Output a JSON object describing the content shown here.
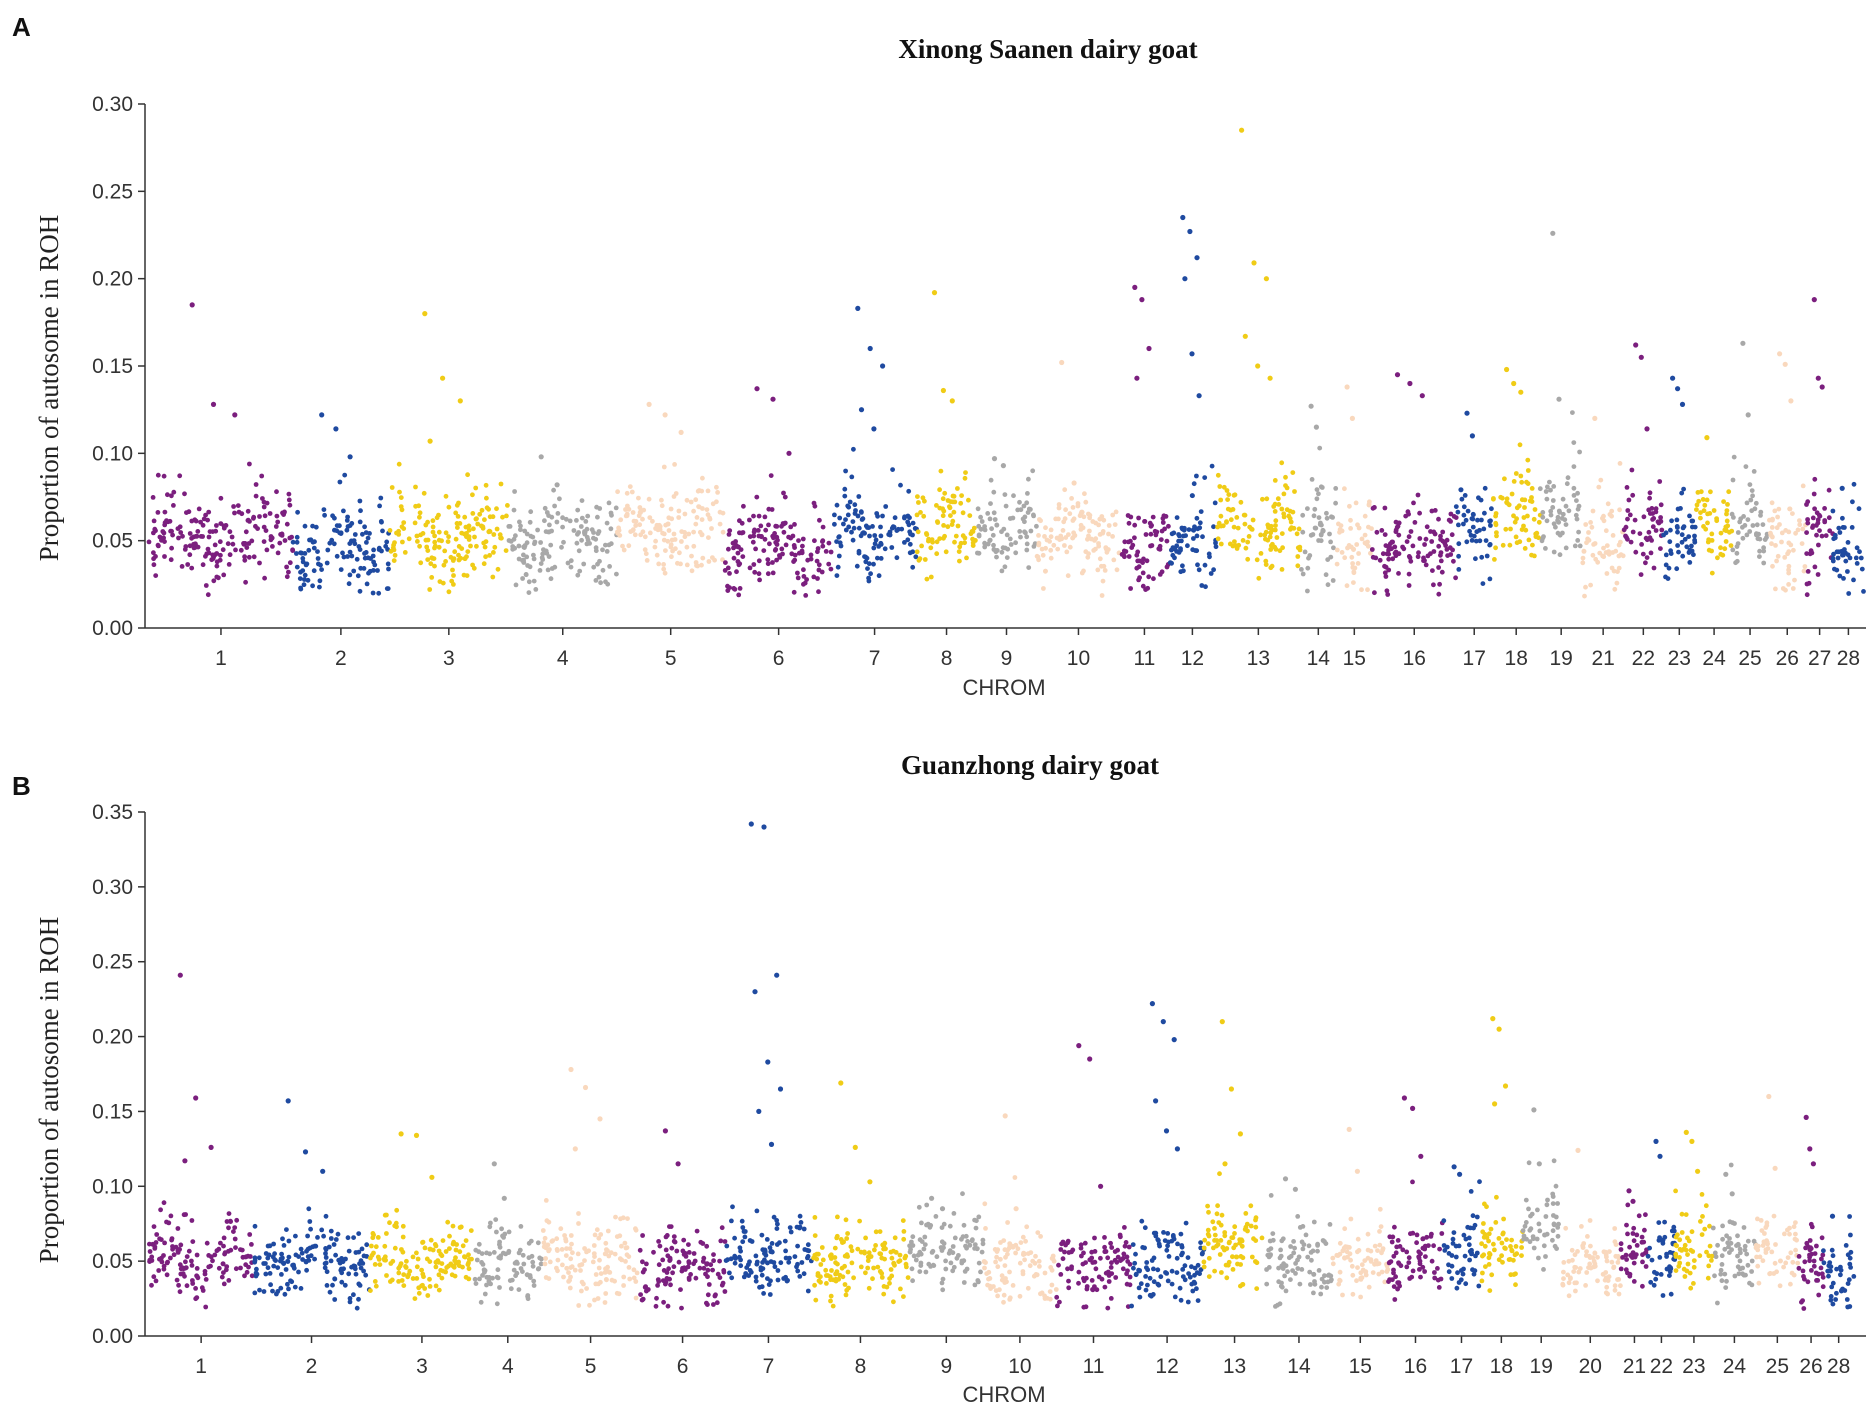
{
  "colors": {
    "purple": "#7b1f7e",
    "blue": "#1f4aa0",
    "yellow": "#f0cc16",
    "gray": "#a8a8a8",
    "peach": "#f9d8bd"
  },
  "chart_data": [
    {
      "panel": "A",
      "type": "scatter",
      "title": "Xinong Saanen dairy goat",
      "xlabel": "CHROM",
      "ylabel": "Proportion of autosome in ROH",
      "ylim": [
        0,
        0.3
      ],
      "yticks": [
        "0.00",
        "0.05",
        "0.10",
        "0.15",
        "0.20",
        "0.25",
        "0.30"
      ],
      "grid": false,
      "color_cycle": [
        "purple",
        "blue",
        "yellow",
        "gray",
        "peach"
      ],
      "chromosomes": [
        {
          "label": "1",
          "start": 0,
          "end": 120,
          "base": 0.052,
          "peaks": [
            0.185,
            0.128,
            0.122
          ]
        },
        {
          "label": "2",
          "start": 120,
          "end": 200,
          "base": 0.048,
          "peaks": [
            0.122,
            0.114,
            0.098
          ]
        },
        {
          "label": "3",
          "start": 200,
          "end": 300,
          "base": 0.052,
          "peaks": [
            0.18,
            0.143,
            0.13,
            0.107
          ]
        },
        {
          "label": "4",
          "start": 300,
          "end": 390,
          "base": 0.05,
          "peaks": [
            0.098,
            0.082
          ]
        },
        {
          "label": "5",
          "start": 390,
          "end": 480,
          "base": 0.055,
          "peaks": [
            0.128,
            0.122,
            0.112
          ]
        },
        {
          "label": "6",
          "start": 480,
          "end": 570,
          "base": 0.045,
          "peaks": [
            0.137,
            0.131,
            0.1
          ]
        },
        {
          "label": "7",
          "start": 570,
          "end": 640,
          "base": 0.055,
          "peaks": [
            0.183,
            0.16,
            0.15,
            0.125,
            0.114
          ]
        },
        {
          "label": "8",
          "start": 640,
          "end": 690,
          "base": 0.06,
          "peaks": [
            0.192,
            0.136,
            0.13
          ]
        },
        {
          "label": "9",
          "start": 690,
          "end": 740,
          "base": 0.055,
          "peaks": [
            0.097,
            0.093
          ]
        },
        {
          "label": "10",
          "start": 740,
          "end": 810,
          "base": 0.053,
          "peaks": [
            0.152,
            0.083
          ]
        },
        {
          "label": "11",
          "start": 810,
          "end": 850,
          "base": 0.045,
          "peaks": [
            0.195,
            0.188,
            0.16,
            0.143
          ]
        },
        {
          "label": "12",
          "start": 850,
          "end": 890,
          "base": 0.05,
          "peaks": [
            0.235,
            0.227,
            0.212,
            0.2,
            0.157,
            0.133
          ]
        },
        {
          "label": "13",
          "start": 890,
          "end": 960,
          "base": 0.058,
          "peaks": [
            0.285,
            0.209,
            0.2,
            0.167,
            0.15,
            0.143
          ]
        },
        {
          "label": "14",
          "start": 960,
          "end": 990,
          "base": 0.055,
          "peaks": [
            0.127,
            0.115
          ]
        },
        {
          "label": "15",
          "start": 990,
          "end": 1020,
          "base": 0.048,
          "peaks": [
            0.138,
            0.12
          ]
        },
        {
          "label": "16",
          "start": 1020,
          "end": 1090,
          "base": 0.048,
          "peaks": [
            0.145,
            0.14,
            0.133
          ]
        },
        {
          "label": "17",
          "start": 1090,
          "end": 1120,
          "base": 0.055,
          "peaks": [
            0.123,
            0.11
          ]
        },
        {
          "label": "18",
          "start": 1120,
          "end": 1160,
          "base": 0.065,
          "peaks": [
            0.148,
            0.14,
            0.135
          ]
        },
        {
          "label": "19",
          "start": 1160,
          "end": 1195,
          "base": 0.065,
          "peaks": [
            0.226,
            0.131
          ]
        },
        {
          "label": "21",
          "start": 1195,
          "end": 1230,
          "base": 0.05,
          "peaks": [
            0.12
          ]
        },
        {
          "label": "22",
          "start": 1230,
          "end": 1262,
          "base": 0.058,
          "peaks": [
            0.162,
            0.155,
            0.114
          ]
        },
        {
          "label": "23",
          "start": 1262,
          "end": 1290,
          "base": 0.055,
          "peaks": [
            0.143,
            0.137,
            0.128
          ]
        },
        {
          "label": "24",
          "start": 1290,
          "end": 1320,
          "base": 0.055,
          "peaks": [
            0.109
          ]
        },
        {
          "label": "25",
          "start": 1320,
          "end": 1350,
          "base": 0.06,
          "peaks": [
            0.163,
            0.122
          ]
        },
        {
          "label": "26",
          "start": 1350,
          "end": 1382,
          "base": 0.048,
          "peaks": [
            0.157,
            0.151,
            0.13
          ]
        },
        {
          "label": "27",
          "start": 1382,
          "end": 1404,
          "base": 0.05,
          "peaks": [
            0.188,
            0.143,
            0.138
          ]
        },
        {
          "label": "28",
          "start": 1404,
          "end": 1430,
          "base": 0.045,
          "peaks": [
            0.08
          ]
        }
      ]
    },
    {
      "panel": "B",
      "type": "scatter",
      "title": "Guanzhong dairy goat",
      "xlabel": "CHROM",
      "ylabel": "Proportion of autosome in ROH",
      "ylim": [
        0,
        0.35
      ],
      "yticks": [
        "0.00",
        "0.05",
        "0.10",
        "0.15",
        "0.20",
        "0.25",
        "0.30",
        "0.35"
      ],
      "grid": false,
      "color_cycle": [
        "purple",
        "blue",
        "yellow",
        "gray",
        "peach"
      ],
      "chromosomes": [
        {
          "label": "1",
          "start": 0,
          "end": 85,
          "base": 0.05,
          "peaks": [
            0.241,
            0.159,
            0.126,
            0.117
          ]
        },
        {
          "label": "2",
          "start": 85,
          "end": 180,
          "base": 0.05,
          "peaks": [
            0.157,
            0.123,
            0.11
          ]
        },
        {
          "label": "3",
          "start": 180,
          "end": 265,
          "base": 0.05,
          "peaks": [
            0.135,
            0.134,
            0.106
          ]
        },
        {
          "label": "4",
          "start": 265,
          "end": 320,
          "base": 0.05,
          "peaks": [
            0.115,
            0.092
          ]
        },
        {
          "label": "5",
          "start": 320,
          "end": 400,
          "base": 0.05,
          "peaks": [
            0.178,
            0.166,
            0.145,
            0.125
          ]
        },
        {
          "label": "6",
          "start": 400,
          "end": 470,
          "base": 0.045,
          "peaks": [
            0.137,
            0.115
          ]
        },
        {
          "label": "7",
          "start": 470,
          "end": 540,
          "base": 0.052,
          "peaks": [
            0.342,
            0.34,
            0.241,
            0.23,
            0.183,
            0.165,
            0.15,
            0.128
          ]
        },
        {
          "label": "8",
          "start": 540,
          "end": 620,
          "base": 0.05,
          "peaks": [
            0.169,
            0.126,
            0.103
          ]
        },
        {
          "label": "9",
          "start": 620,
          "end": 680,
          "base": 0.055,
          "peaks": [
            0.092,
            0.085
          ]
        },
        {
          "label": "10",
          "start": 680,
          "end": 740,
          "base": 0.048,
          "peaks": [
            0.147,
            0.085
          ]
        },
        {
          "label": "11",
          "start": 740,
          "end": 800,
          "base": 0.045,
          "peaks": [
            0.194,
            0.185,
            0.1
          ]
        },
        {
          "label": "12",
          "start": 800,
          "end": 860,
          "base": 0.048,
          "peaks": [
            0.222,
            0.21,
            0.198,
            0.157,
            0.137,
            0.125
          ]
        },
        {
          "label": "13",
          "start": 860,
          "end": 910,
          "base": 0.058,
          "peaks": [
            0.21,
            0.165,
            0.135,
            0.115
          ]
        },
        {
          "label": "14",
          "start": 910,
          "end": 965,
          "base": 0.05,
          "peaks": [
            0.105,
            0.098
          ]
        },
        {
          "label": "15",
          "start": 965,
          "end": 1010,
          "base": 0.048,
          "peaks": [
            0.138,
            0.11
          ]
        },
        {
          "label": "16",
          "start": 1010,
          "end": 1055,
          "base": 0.052,
          "peaks": [
            0.159,
            0.152,
            0.12
          ]
        },
        {
          "label": "17",
          "start": 1055,
          "end": 1085,
          "base": 0.05,
          "peaks": [
            0.113,
            0.108
          ]
        },
        {
          "label": "18",
          "start": 1085,
          "end": 1120,
          "base": 0.06,
          "peaks": [
            0.212,
            0.205,
            0.167,
            0.155
          ]
        },
        {
          "label": "19",
          "start": 1120,
          "end": 1150,
          "base": 0.07,
          "peaks": [
            0.151,
            0.115
          ]
        },
        {
          "label": "20",
          "start": 1150,
          "end": 1200,
          "base": 0.048,
          "peaks": [
            0.124
          ]
        },
        {
          "label": "21",
          "start": 1200,
          "end": 1222,
          "base": 0.055,
          "peaks": [
            0.097,
            0.09
          ]
        },
        {
          "label": "22",
          "start": 1222,
          "end": 1244,
          "base": 0.055,
          "peaks": [
            0.13,
            0.12
          ]
        },
        {
          "label": "23",
          "start": 1244,
          "end": 1275,
          "base": 0.055,
          "peaks": [
            0.136,
            0.13,
            0.11
          ]
        },
        {
          "label": "24",
          "start": 1275,
          "end": 1310,
          "base": 0.052,
          "peaks": [
            0.108,
            0.095
          ]
        },
        {
          "label": "25",
          "start": 1310,
          "end": 1345,
          "base": 0.055,
          "peaks": [
            0.16,
            0.112
          ]
        },
        {
          "label": "26",
          "start": 1345,
          "end": 1365,
          "base": 0.048,
          "peaks": [
            0.146,
            0.125,
            0.115
          ]
        },
        {
          "label": "28",
          "start": 1365,
          "end": 1390,
          "base": 0.042,
          "peaks": [
            0.08
          ]
        }
      ]
    }
  ]
}
